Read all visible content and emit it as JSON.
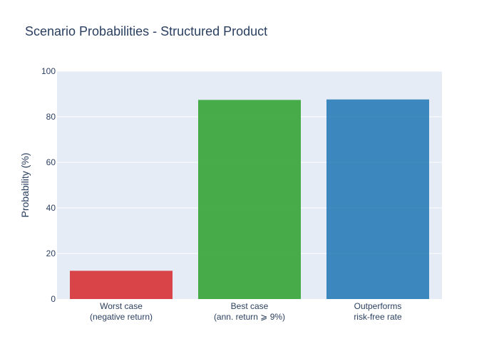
{
  "chart_data": {
    "type": "bar",
    "title": "Scenario Probabilities - Structured Product",
    "xlabel": "",
    "ylabel": "Probability (%)",
    "ylim": [
      0,
      100
    ],
    "yticks": [
      0,
      20,
      40,
      60,
      80,
      100
    ],
    "categories": [
      [
        "Worst case",
        "(negative return)"
      ],
      [
        "Best case",
        "(ann. return ⩾ 9%)"
      ],
      [
        "Outperforms",
        "risk-free rate"
      ]
    ],
    "values": [
      12.4,
      87.4,
      87.6
    ],
    "colors": [
      "#d62728",
      "#2ca02c",
      "#1f77b4"
    ],
    "plot_bg": "#e5ecf6",
    "grid": true,
    "legend": "none"
  }
}
